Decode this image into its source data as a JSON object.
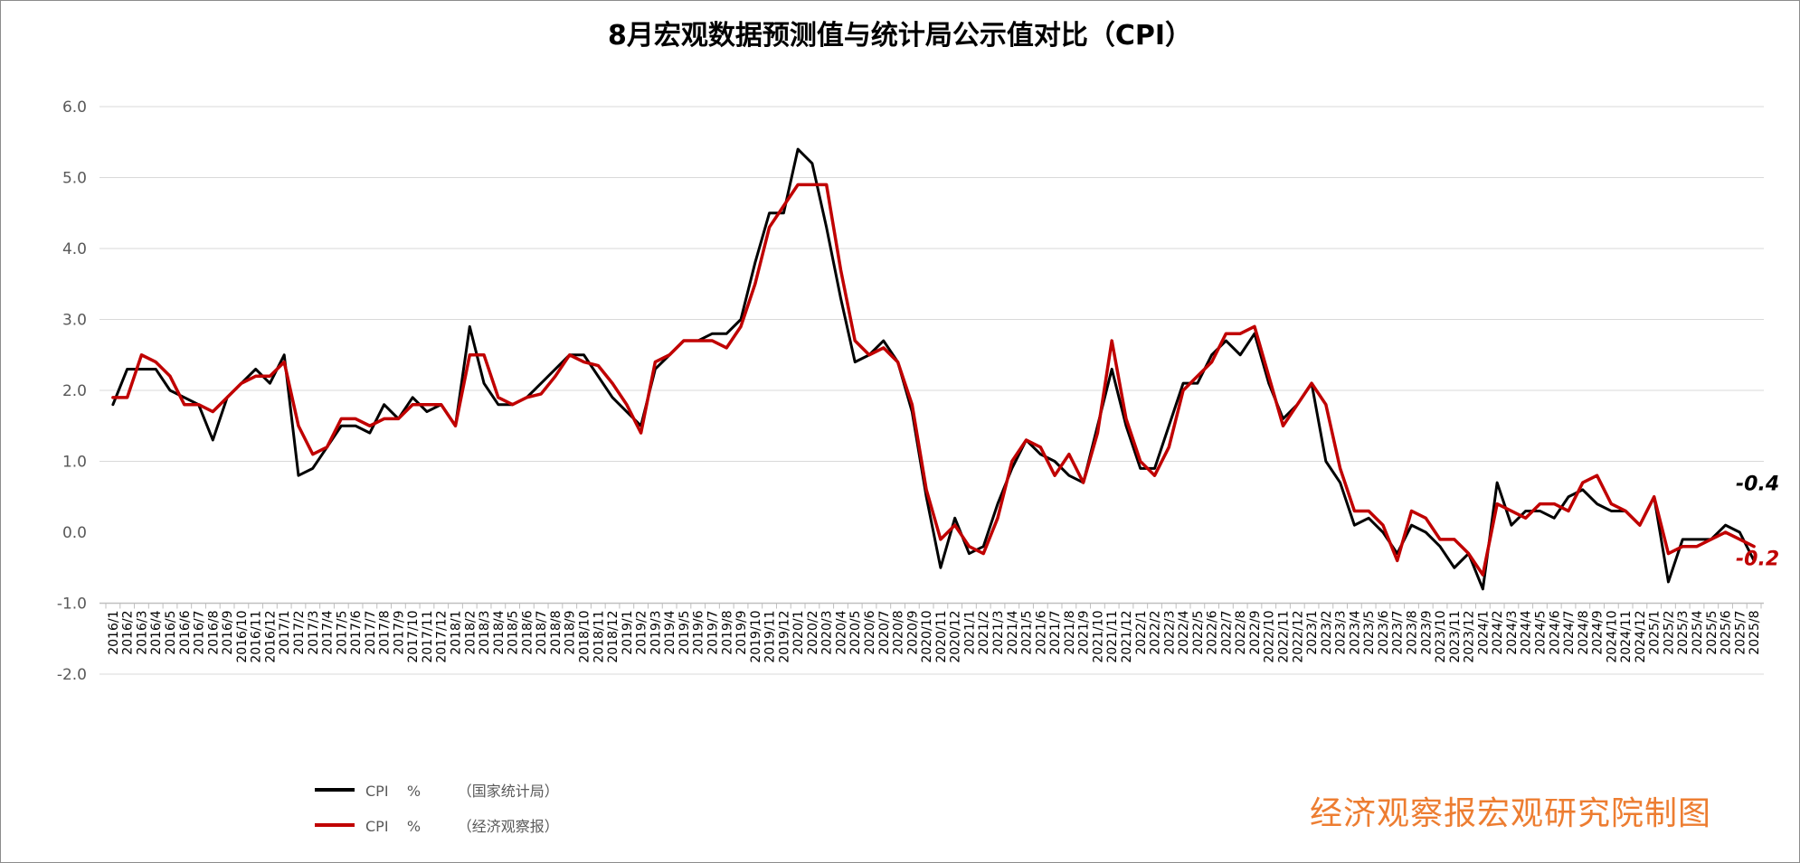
{
  "chart_data": {
    "type": "line",
    "title": "8月宏观数据预测值与统计局公示值对比（CPI）",
    "ylim": [
      -2.0,
      6.0
    ],
    "yticks": [
      "6.0",
      "5.0",
      "4.0",
      "3.0",
      "2.0",
      "1.0",
      "0.0",
      "-1.0",
      "-2.0"
    ],
    "grid": true,
    "legend_position": "bottom-left",
    "categories": [
      "2016/1",
      "2016/2",
      "2016/3",
      "2016/4",
      "2016/5",
      "2016/6",
      "2016/7",
      "2016/8",
      "2016/9",
      "2016/10",
      "2016/11",
      "2016/12",
      "2017/1",
      "2017/2",
      "2017/3",
      "2017/4",
      "2017/5",
      "2017/6",
      "2017/7",
      "2017/8",
      "2017/9",
      "2017/10",
      "2017/11",
      "2017/12",
      "2018/1",
      "2018/2",
      "2018/3",
      "2018/4",
      "2018/5",
      "2018/6",
      "2018/7",
      "2018/8",
      "2018/9",
      "2018/10",
      "2018/11",
      "2018/12",
      "2019/1",
      "2019/2",
      "2019/3",
      "2019/4",
      "2019/5",
      "2019/6",
      "2019/7",
      "2019/8",
      "2019/9",
      "2019/10",
      "2019/11",
      "2019/12",
      "2020/1",
      "2020/2",
      "2020/3",
      "2020/4",
      "2020/5",
      "2020/6",
      "2020/7",
      "2020/8",
      "2020/9",
      "2020/10",
      "2020/11",
      "2020/12",
      "2021/1",
      "2021/2",
      "2021/3",
      "2021/4",
      "2021/5",
      "2021/6",
      "2021/7",
      "2021/8",
      "2021/9",
      "2021/10",
      "2021/11",
      "2021/12",
      "2022/1",
      "2022/2",
      "2022/3",
      "2022/4",
      "2022/5",
      "2022/6",
      "2022/7",
      "2022/8",
      "2022/9",
      "2022/10",
      "2022/11",
      "2022/12",
      "2023/1",
      "2023/2",
      "2023/3",
      "2023/4",
      "2023/5",
      "2023/6",
      "2023/7",
      "2023/8",
      "2023/9",
      "2023/10",
      "2023/11",
      "2023/12",
      "2024/1",
      "2024/2",
      "2024/3",
      "2024/4",
      "2024/5",
      "2024/6",
      "2024/7",
      "2024/8",
      "2024/9",
      "2024/10",
      "2024/11",
      "2024/12",
      "2025/1",
      "2025/2",
      "2025/3",
      "2025/4",
      "2025/5",
      "2025/6",
      "2025/7",
      "2025/8"
    ],
    "series": [
      {
        "name": "CPI    %        （国家统计局）",
        "color": "#000000",
        "values": [
          1.8,
          2.3,
          2.3,
          2.3,
          2.0,
          1.9,
          1.8,
          1.3,
          1.9,
          2.1,
          2.3,
          2.1,
          2.5,
          0.8,
          0.9,
          1.2,
          1.5,
          1.5,
          1.4,
          1.8,
          1.6,
          1.9,
          1.7,
          1.8,
          1.5,
          2.9,
          2.1,
          1.8,
          1.8,
          1.9,
          2.1,
          2.3,
          2.5,
          2.5,
          2.2,
          1.9,
          1.7,
          1.5,
          2.3,
          2.5,
          2.7,
          2.7,
          2.8,
          2.8,
          3.0,
          3.8,
          4.5,
          4.5,
          5.4,
          5.2,
          4.3,
          3.3,
          2.4,
          2.5,
          2.7,
          2.4,
          1.7,
          0.5,
          -0.5,
          0.2,
          -0.3,
          -0.2,
          0.4,
          0.9,
          1.3,
          1.1,
          1.0,
          0.8,
          0.7,
          1.5,
          2.3,
          1.5,
          0.9,
          0.9,
          1.5,
          2.1,
          2.1,
          2.5,
          2.7,
          2.5,
          2.8,
          2.1,
          1.6,
          1.8,
          2.1,
          1.0,
          0.7,
          0.1,
          0.2,
          0.0,
          -0.3,
          0.1,
          0.0,
          -0.2,
          -0.5,
          -0.3,
          -0.8,
          0.7,
          0.1,
          0.3,
          0.3,
          0.2,
          0.5,
          0.6,
          0.4,
          0.3,
          0.3,
          0.1,
          0.5,
          -0.7,
          -0.1,
          -0.1,
          -0.1,
          0.1,
          0.0,
          -0.4
        ]
      },
      {
        "name": "CPI    %        （经济观察报）",
        "color": "#c00000",
        "values": [
          1.9,
          1.9,
          2.5,
          2.4,
          2.2,
          1.8,
          1.8,
          1.7,
          1.9,
          2.1,
          2.2,
          2.2,
          2.4,
          1.5,
          1.1,
          1.2,
          1.6,
          1.6,
          1.5,
          1.6,
          1.6,
          1.8,
          1.8,
          1.8,
          1.5,
          2.5,
          2.5,
          1.9,
          1.8,
          1.9,
          1.95,
          2.2,
          2.5,
          2.4,
          2.35,
          2.1,
          1.8,
          1.4,
          2.4,
          2.5,
          2.7,
          2.7,
          2.7,
          2.6,
          2.9,
          3.5,
          4.3,
          4.6,
          4.9,
          4.9,
          4.9,
          3.7,
          2.7,
          2.5,
          2.6,
          2.4,
          1.8,
          0.6,
          -0.1,
          0.1,
          -0.2,
          -0.3,
          0.2,
          1.0,
          1.3,
          1.2,
          0.8,
          1.1,
          0.7,
          1.4,
          2.7,
          1.6,
          1.0,
          0.8,
          1.2,
          2.0,
          2.2,
          2.4,
          2.8,
          2.8,
          2.9,
          2.2,
          1.5,
          1.8,
          2.1,
          1.8,
          0.9,
          0.3,
          0.3,
          0.1,
          -0.4,
          0.3,
          0.2,
          -0.1,
          -0.1,
          -0.3,
          -0.6,
          0.4,
          0.3,
          0.2,
          0.4,
          0.4,
          0.3,
          0.7,
          0.8,
          0.4,
          0.3,
          0.1,
          0.5,
          -0.3,
          -0.2,
          -0.2,
          -0.1,
          0.0,
          -0.1,
          -0.2
        ]
      }
    ],
    "end_labels": [
      {
        "text": "-0.4",
        "color": "#000000"
      },
      {
        "text": "-0.2",
        "color": "#c00000"
      }
    ]
  },
  "legend": [
    {
      "label": "CPI    %        （国家统计局）",
      "color": "#000000"
    },
    {
      "label": "CPI    %        （经济观察报）",
      "color": "#c00000"
    }
  ],
  "credit": "经济观察报宏观研究院制图"
}
